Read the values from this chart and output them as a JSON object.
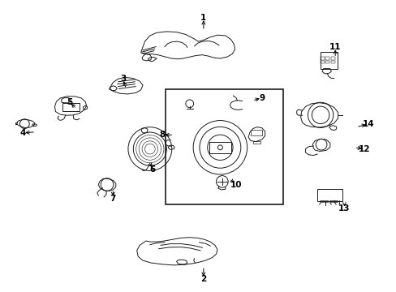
{
  "bg_color": "#ffffff",
  "line_color": "#1a1a1a",
  "fig_width": 4.89,
  "fig_height": 3.6,
  "dpi": 100,
  "labels": {
    "1": [
      0.513,
      0.938,
      0.513,
      0.895
    ],
    "2": [
      0.513,
      0.045,
      0.513,
      0.088
    ],
    "3": [
      0.31,
      0.73,
      0.318,
      0.695
    ],
    "4": [
      0.058,
      0.545,
      0.09,
      0.548
    ],
    "5": [
      0.175,
      0.65,
      0.193,
      0.628
    ],
    "6": [
      0.385,
      0.42,
      0.375,
      0.448
    ],
    "7": [
      0.285,
      0.32,
      0.285,
      0.352
    ],
    "8": [
      0.41,
      0.538,
      0.438,
      0.538
    ],
    "9": [
      0.66,
      0.665,
      0.636,
      0.655
    ],
    "10": [
      0.595,
      0.368,
      0.578,
      0.388
    ],
    "11": [
      0.845,
      0.838,
      0.845,
      0.802
    ],
    "12": [
      0.918,
      0.49,
      0.893,
      0.495
    ],
    "13": [
      0.868,
      0.285,
      0.868,
      0.308
    ],
    "14": [
      0.928,
      0.575,
      0.898,
      0.565
    ]
  }
}
